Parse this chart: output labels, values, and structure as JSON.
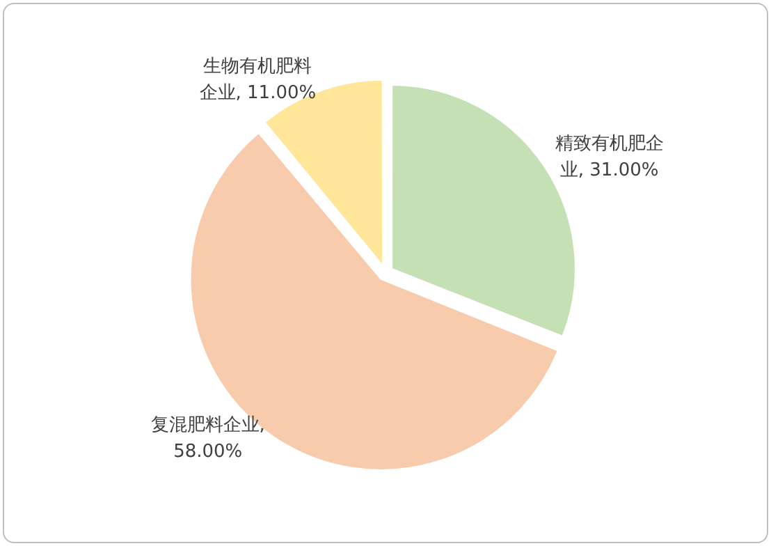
{
  "chart_data": {
    "type": "pie",
    "categories": [
      "精致有机肥企业",
      "复混肥料企业",
      "生物有机肥料企业"
    ],
    "values": [
      31,
      58,
      11
    ],
    "colors": [
      "#c5e0b4",
      "#f8cbad",
      "#ffe699"
    ],
    "value_labels": [
      ", 31.00%",
      ", 58.00%",
      ", 11.00%"
    ],
    "legend": false
  }
}
